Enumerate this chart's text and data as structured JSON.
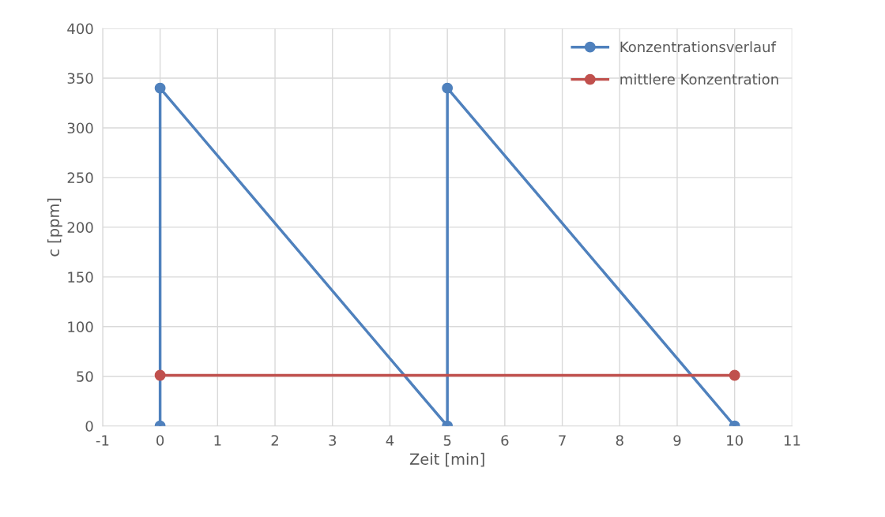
{
  "chart_data": {
    "type": "line",
    "xlabel": "Zeit [min]",
    "ylabel": "c [ppm]",
    "xlim": [
      -1,
      11
    ],
    "xticks": [
      -1,
      0,
      1,
      2,
      3,
      4,
      5,
      6,
      7,
      8,
      9,
      10,
      11
    ],
    "ylim": [
      0,
      400
    ],
    "yticks": [
      0,
      50,
      100,
      150,
      200,
      250,
      300,
      350,
      400
    ],
    "grid": true,
    "legend": "top right",
    "marker": "circle",
    "line_style": "solid",
    "series": [
      {
        "name": "Konzentrationsverlauf",
        "color": "#4f81bd",
        "x": [
          0,
          0,
          5,
          5,
          10
        ],
        "values": [
          0,
          340,
          0,
          340,
          0
        ]
      },
      {
        "name": "mittlere Konzentration",
        "color": "#c0504d",
        "x": [
          0,
          10
        ],
        "values": [
          51,
          51
        ]
      }
    ]
  }
}
